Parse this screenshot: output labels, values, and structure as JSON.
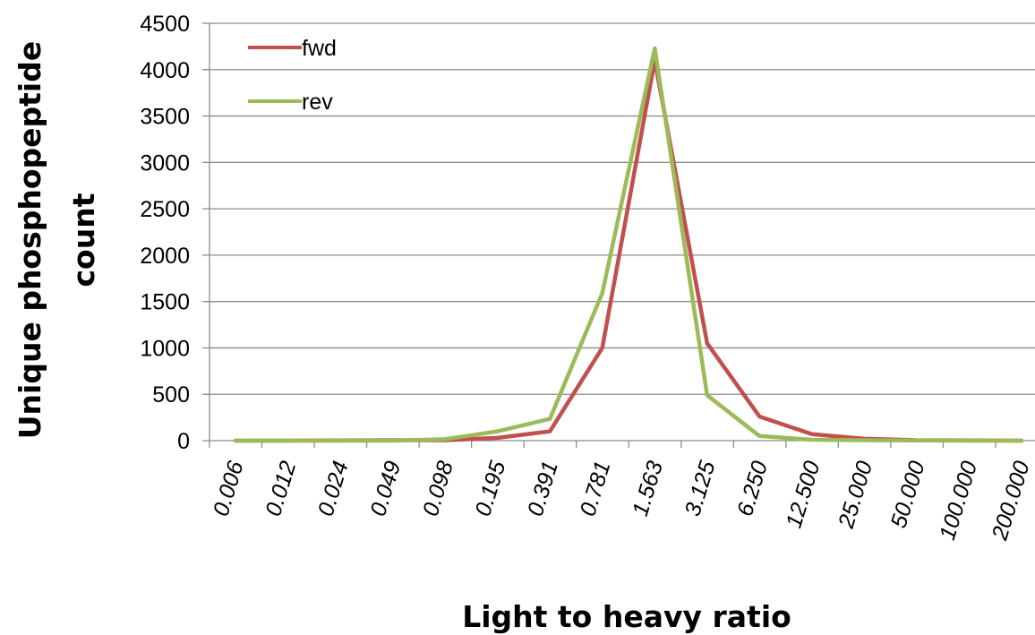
{
  "chart_data": {
    "type": "line",
    "title": "",
    "xlabel": "Light to heavy ratio",
    "ylabel_lines": [
      "Unique phosphopeptide",
      "count"
    ],
    "ylim": [
      0,
      4500
    ],
    "yticks": [
      "0",
      "500",
      "1000",
      "1500",
      "2000",
      "2500",
      "3000",
      "3500",
      "4000",
      "4500"
    ],
    "grid": true,
    "legend_position": "top-left",
    "categories": [
      "0.006",
      "0.012",
      "0.024",
      "0.049",
      "0.098",
      "0.195",
      "0.391",
      "0.781",
      "1.563",
      "3.125",
      "6.250",
      "12.500",
      "25.000",
      "50.000",
      "100.000",
      "200.000"
    ],
    "series": [
      {
        "name": "fwd",
        "color": "#c0504d",
        "values": [
          0,
          0,
          2,
          5,
          5,
          30,
          100,
          1000,
          4100,
          1050,
          260,
          70,
          20,
          5,
          2,
          0
        ]
      },
      {
        "name": "rev",
        "color": "#9bbb59",
        "values": [
          0,
          0,
          0,
          0,
          15,
          100,
          235,
          1590,
          4230,
          490,
          50,
          10,
          5,
          2,
          0,
          0
        ]
      }
    ]
  }
}
